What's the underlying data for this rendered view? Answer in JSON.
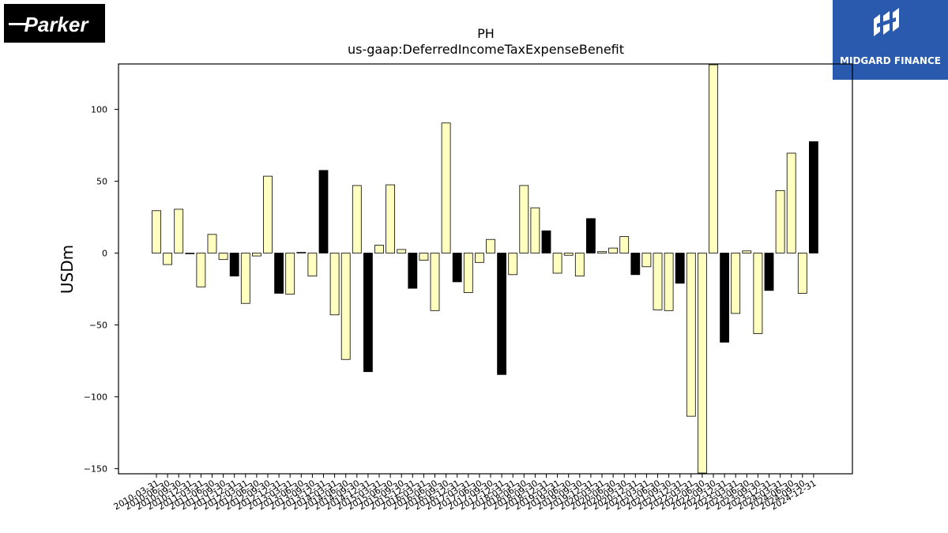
{
  "brand": {
    "left_logo_text": "Parker",
    "right_logo_text": "MIDGARD FINANCE"
  },
  "colors": {
    "positive_like": "#ffffc0",
    "highlight": "#000000",
    "midgard_bg": "#2a5aad"
  },
  "chart_data": {
    "type": "bar",
    "title": "PH",
    "subtitle": "us-gaap:DeferredIncomeTaxExpenseBenefit",
    "xlabel": "",
    "ylabel": "USDm",
    "ylim": [
      -153,
      131
    ],
    "yticks": [
      -150,
      -100,
      -50,
      0,
      50,
      100
    ],
    "ytick_labels": [
      "−150",
      "−100",
      "−50",
      "0",
      "50",
      "100"
    ],
    "grid": false,
    "categories": [
      "2010-03-31",
      "2010-06-30",
      "2010-09-30",
      "2010-12-31",
      "2011-03-31",
      "2011-06-30",
      "2011-09-30",
      "2011-12-31",
      "2012-03-31",
      "2012-06-30",
      "2012-09-30",
      "2012-12-31",
      "2013-03-31",
      "2013-06-30",
      "2013-09-30",
      "2013-12-31",
      "2014-03-31",
      "2014-06-30",
      "2014-09-30",
      "2014-12-31",
      "2015-03-31",
      "2015-06-30",
      "2015-09-30",
      "2015-12-31",
      "2016-03-31",
      "2016-06-30",
      "2016-09-30",
      "2016-12-31",
      "2017-03-31",
      "2017-06-30",
      "2017-09-30",
      "2017-12-31",
      "2018-03-31",
      "2018-06-30",
      "2018-09-30",
      "2018-12-31",
      "2019-03-31",
      "2019-06-30",
      "2019-09-30",
      "2019-12-31",
      "2020-03-31",
      "2020-06-30",
      "2020-09-30",
      "2020-12-31",
      "2021-03-31",
      "2021-06-30",
      "2021-09-30",
      "2021-12-31",
      "2022-03-31",
      "2022-06-30",
      "2022-09-30",
      "2022-12-31",
      "2023-03-31",
      "2023-06-30",
      "2023-09-30",
      "2023-12-31",
      "2024-03-31",
      "2024-06-30",
      "2024-09-30",
      "2024-12-31"
    ],
    "values": [
      29.5,
      -8,
      30.5,
      -0.5,
      -23.5,
      13,
      -4.5,
      -16,
      -35,
      -2,
      53.5,
      -28,
      -28.5,
      0.5,
      -16,
      57.5,
      -43,
      -74,
      47,
      -82.5,
      5.5,
      47.5,
      2.5,
      -24.5,
      -5,
      -40,
      90.5,
      -20,
      -27.5,
      -6.5,
      9.5,
      -84.5,
      -15,
      47,
      31.5,
      15.5,
      -14,
      -1.5,
      -16,
      24,
      1,
      3.5,
      11.5,
      -15,
      -9.5,
      -39.5,
      -40,
      -21,
      -113.5,
      -153,
      131,
      -62,
      -42,
      1.5,
      -56,
      -26,
      43.5,
      69.5,
      -28,
      77.5
    ],
    "highlighted": [
      false,
      false,
      false,
      false,
      false,
      false,
      false,
      true,
      false,
      false,
      false,
      true,
      false,
      false,
      false,
      true,
      false,
      false,
      false,
      true,
      false,
      false,
      false,
      true,
      false,
      false,
      false,
      true,
      false,
      false,
      false,
      true,
      false,
      false,
      false,
      true,
      false,
      false,
      false,
      true,
      false,
      false,
      false,
      true,
      false,
      false,
      false,
      true,
      false,
      false,
      false,
      true,
      false,
      false,
      false,
      true,
      false,
      false,
      false,
      true
    ]
  }
}
